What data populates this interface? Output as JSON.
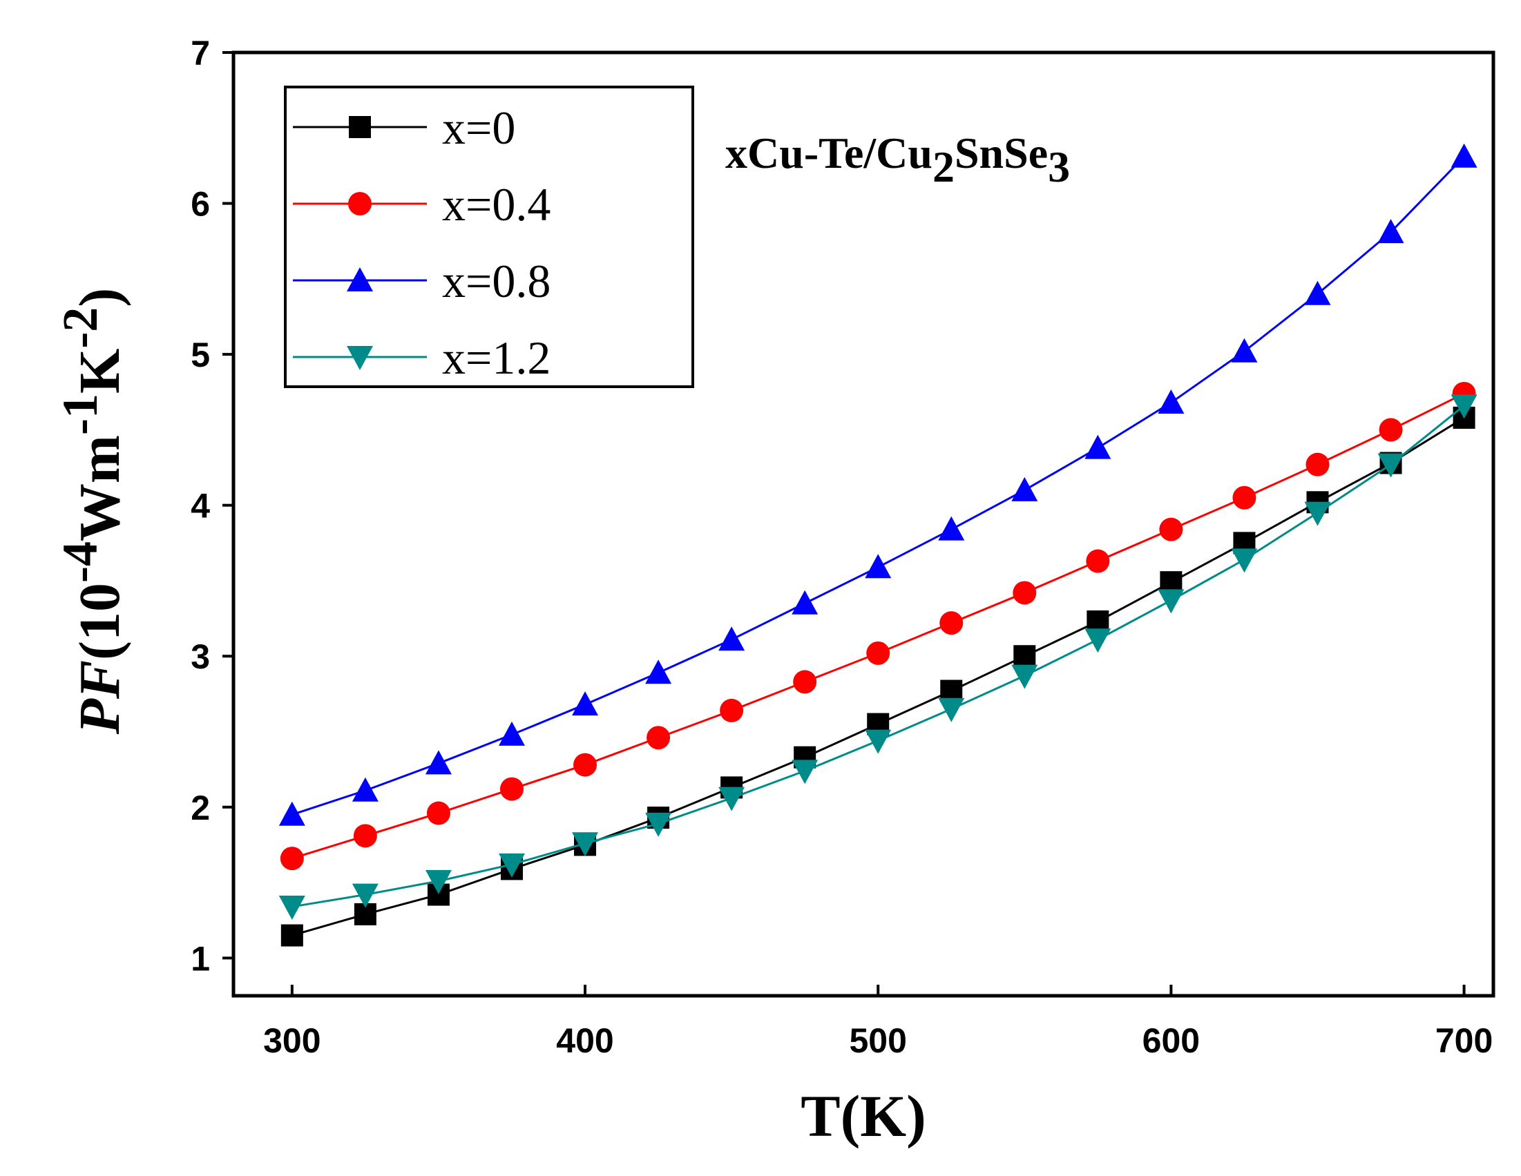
{
  "chart_data": {
    "type": "line",
    "title": "",
    "annotation": {
      "main": "xCu-Te/Cu",
      "sub1": "2",
      "mid": "SnSe",
      "sub2": "3"
    },
    "xlabel": "T(K)",
    "ylabel": {
      "italic": "PF",
      "p1": "(10",
      "sup1": "-4",
      "p2": "Wm",
      "sup2": "-1",
      "p3": "K",
      "sup3": "-2",
      "p4": ")"
    },
    "xlim": [
      280,
      710
    ],
    "ylim": [
      0.75,
      7.0
    ],
    "xticks": [
      300,
      400,
      500,
      600,
      700
    ],
    "yticks": [
      1,
      2,
      3,
      4,
      5,
      6,
      7
    ],
    "grid": false,
    "legend_position": "top-left",
    "x": [
      300,
      325,
      350,
      375,
      400,
      425,
      450,
      475,
      500,
      525,
      550,
      575,
      600,
      625,
      650,
      675,
      700
    ],
    "series": [
      {
        "name": "x=0",
        "color": "#000000",
        "marker": "square",
        "values": [
          1.15,
          1.29,
          1.42,
          1.59,
          1.75,
          1.93,
          2.13,
          2.33,
          2.55,
          2.77,
          3.0,
          3.23,
          3.49,
          3.75,
          4.02,
          4.28,
          4.58
        ]
      },
      {
        "name": "x=0.4",
        "color": "#ff0000",
        "marker": "circle",
        "values": [
          1.66,
          1.81,
          1.96,
          2.12,
          2.28,
          2.46,
          2.64,
          2.83,
          3.02,
          3.22,
          3.42,
          3.63,
          3.84,
          4.05,
          4.27,
          4.5,
          4.74
        ]
      },
      {
        "name": "x=0.8",
        "color": "#0000ff",
        "marker": "triangle-up",
        "values": [
          1.95,
          2.11,
          2.29,
          2.48,
          2.68,
          2.89,
          3.11,
          3.35,
          3.59,
          3.84,
          4.1,
          4.38,
          4.68,
          5.02,
          5.4,
          5.81,
          6.31
        ]
      },
      {
        "name": "x=1.2",
        "color": "#008b8b",
        "marker": "triangle-down",
        "values": [
          1.34,
          1.42,
          1.51,
          1.62,
          1.76,
          1.89,
          2.06,
          2.24,
          2.44,
          2.65,
          2.87,
          3.11,
          3.37,
          3.64,
          3.95,
          4.27,
          4.66
        ]
      }
    ]
  }
}
